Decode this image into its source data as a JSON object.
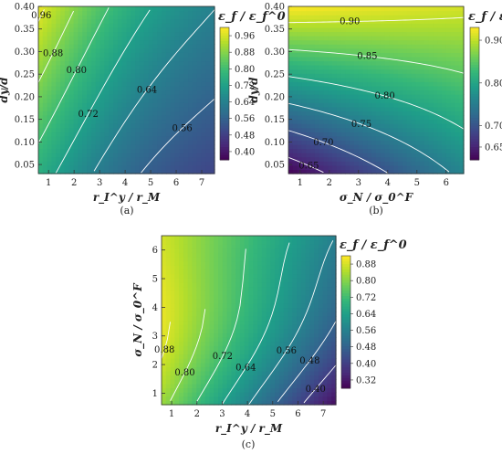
{
  "chart_data": [
    {
      "type": "heatmap",
      "panel_label": "(a)",
      "xlabel": "r_I^y / r_M",
      "ylabel": "dy/d",
      "xticks": [
        "1",
        "2",
        "3",
        "4",
        "5",
        "6",
        "7"
      ],
      "yticks": [
        "0.05",
        "0.10",
        "0.15",
        "0.20",
        "0.25",
        "0.30",
        "0.35",
        "0.40"
      ],
      "xlim": [
        0.6,
        7.5
      ],
      "ylim": [
        0.03,
        0.4
      ],
      "colorbar_title": "ε_f / ε_f^0",
      "colorbar_ticks": [
        "0.96",
        "0.88",
        "0.80",
        "0.72",
        "0.64",
        "0.56",
        "0.48",
        "0.40"
      ],
      "colorbar_range": [
        0.36,
        1.0
      ],
      "contour_labels": [
        "0.96",
        "0.88",
        "0.80",
        "0.72",
        "0.64",
        "0.56",
        "0.48"
      ],
      "z_grid_note": "corners: top-left 0.98, top-right 0.66, bottom-left 0.78, bottom-right 0.38"
    },
    {
      "type": "heatmap",
      "panel_label": "(b)",
      "xlabel": "σ_N / σ_0^F",
      "ylabel": "dy/d",
      "xticks": [
        "1",
        "2",
        "3",
        "4",
        "5",
        "6"
      ],
      "yticks": [
        "0.05",
        "0.10",
        "0.15",
        "0.20",
        "0.25",
        "0.30",
        "0.35",
        "0.40"
      ],
      "xlim": [
        0.6,
        6.6
      ],
      "ylim": [
        0.03,
        0.4
      ],
      "colorbar_title": "ε_f / ε_f^0",
      "colorbar_ticks": [
        "0.90",
        "0.80",
        "0.70",
        "0.65"
      ],
      "colorbar_range": [
        0.62,
        0.93
      ],
      "contour_labels": [
        "0.90",
        "0.85",
        "0.80",
        "0.70",
        "0.75",
        "0.65"
      ],
      "z_grid_note": "corners: top-left 0.93, top-right 0.91, bottom-left 0.62, bottom-right 0.76"
    },
    {
      "type": "heatmap",
      "panel_label": "(c)",
      "xlabel": "r_I^y / r_M",
      "ylabel": "σ_N / σ_0^F",
      "xticks": [
        "1",
        "2",
        "3",
        "4",
        "5",
        "6",
        "7"
      ],
      "yticks": [
        "1",
        "2",
        "3",
        "4",
        "5",
        "6"
      ],
      "xlim": [
        0.6,
        7.5
      ],
      "ylim": [
        0.6,
        6.5
      ],
      "colorbar_title": "ε_f / ε_f^0",
      "colorbar_ticks": [
        "0.88",
        "0.80",
        "0.72",
        "0.64",
        "0.56",
        "0.48",
        "0.40",
        "0.32"
      ],
      "colorbar_range": [
        0.28,
        0.92
      ],
      "contour_labels": [
        "0.88",
        "0.80",
        "0.72",
        "0.64",
        "0.56",
        "0.48",
        "0.40"
      ],
      "z_grid_note": "corners: top-left 0.91, top-right 0.64, bottom-left 0.82, bottom-right 0.30"
    }
  ],
  "colors": {
    "viridis_low": "#5b3f8c",
    "viridis_mid": "#3fa58e",
    "viridis_high": "#e5e64a",
    "contour_line": "#ffffff"
  }
}
